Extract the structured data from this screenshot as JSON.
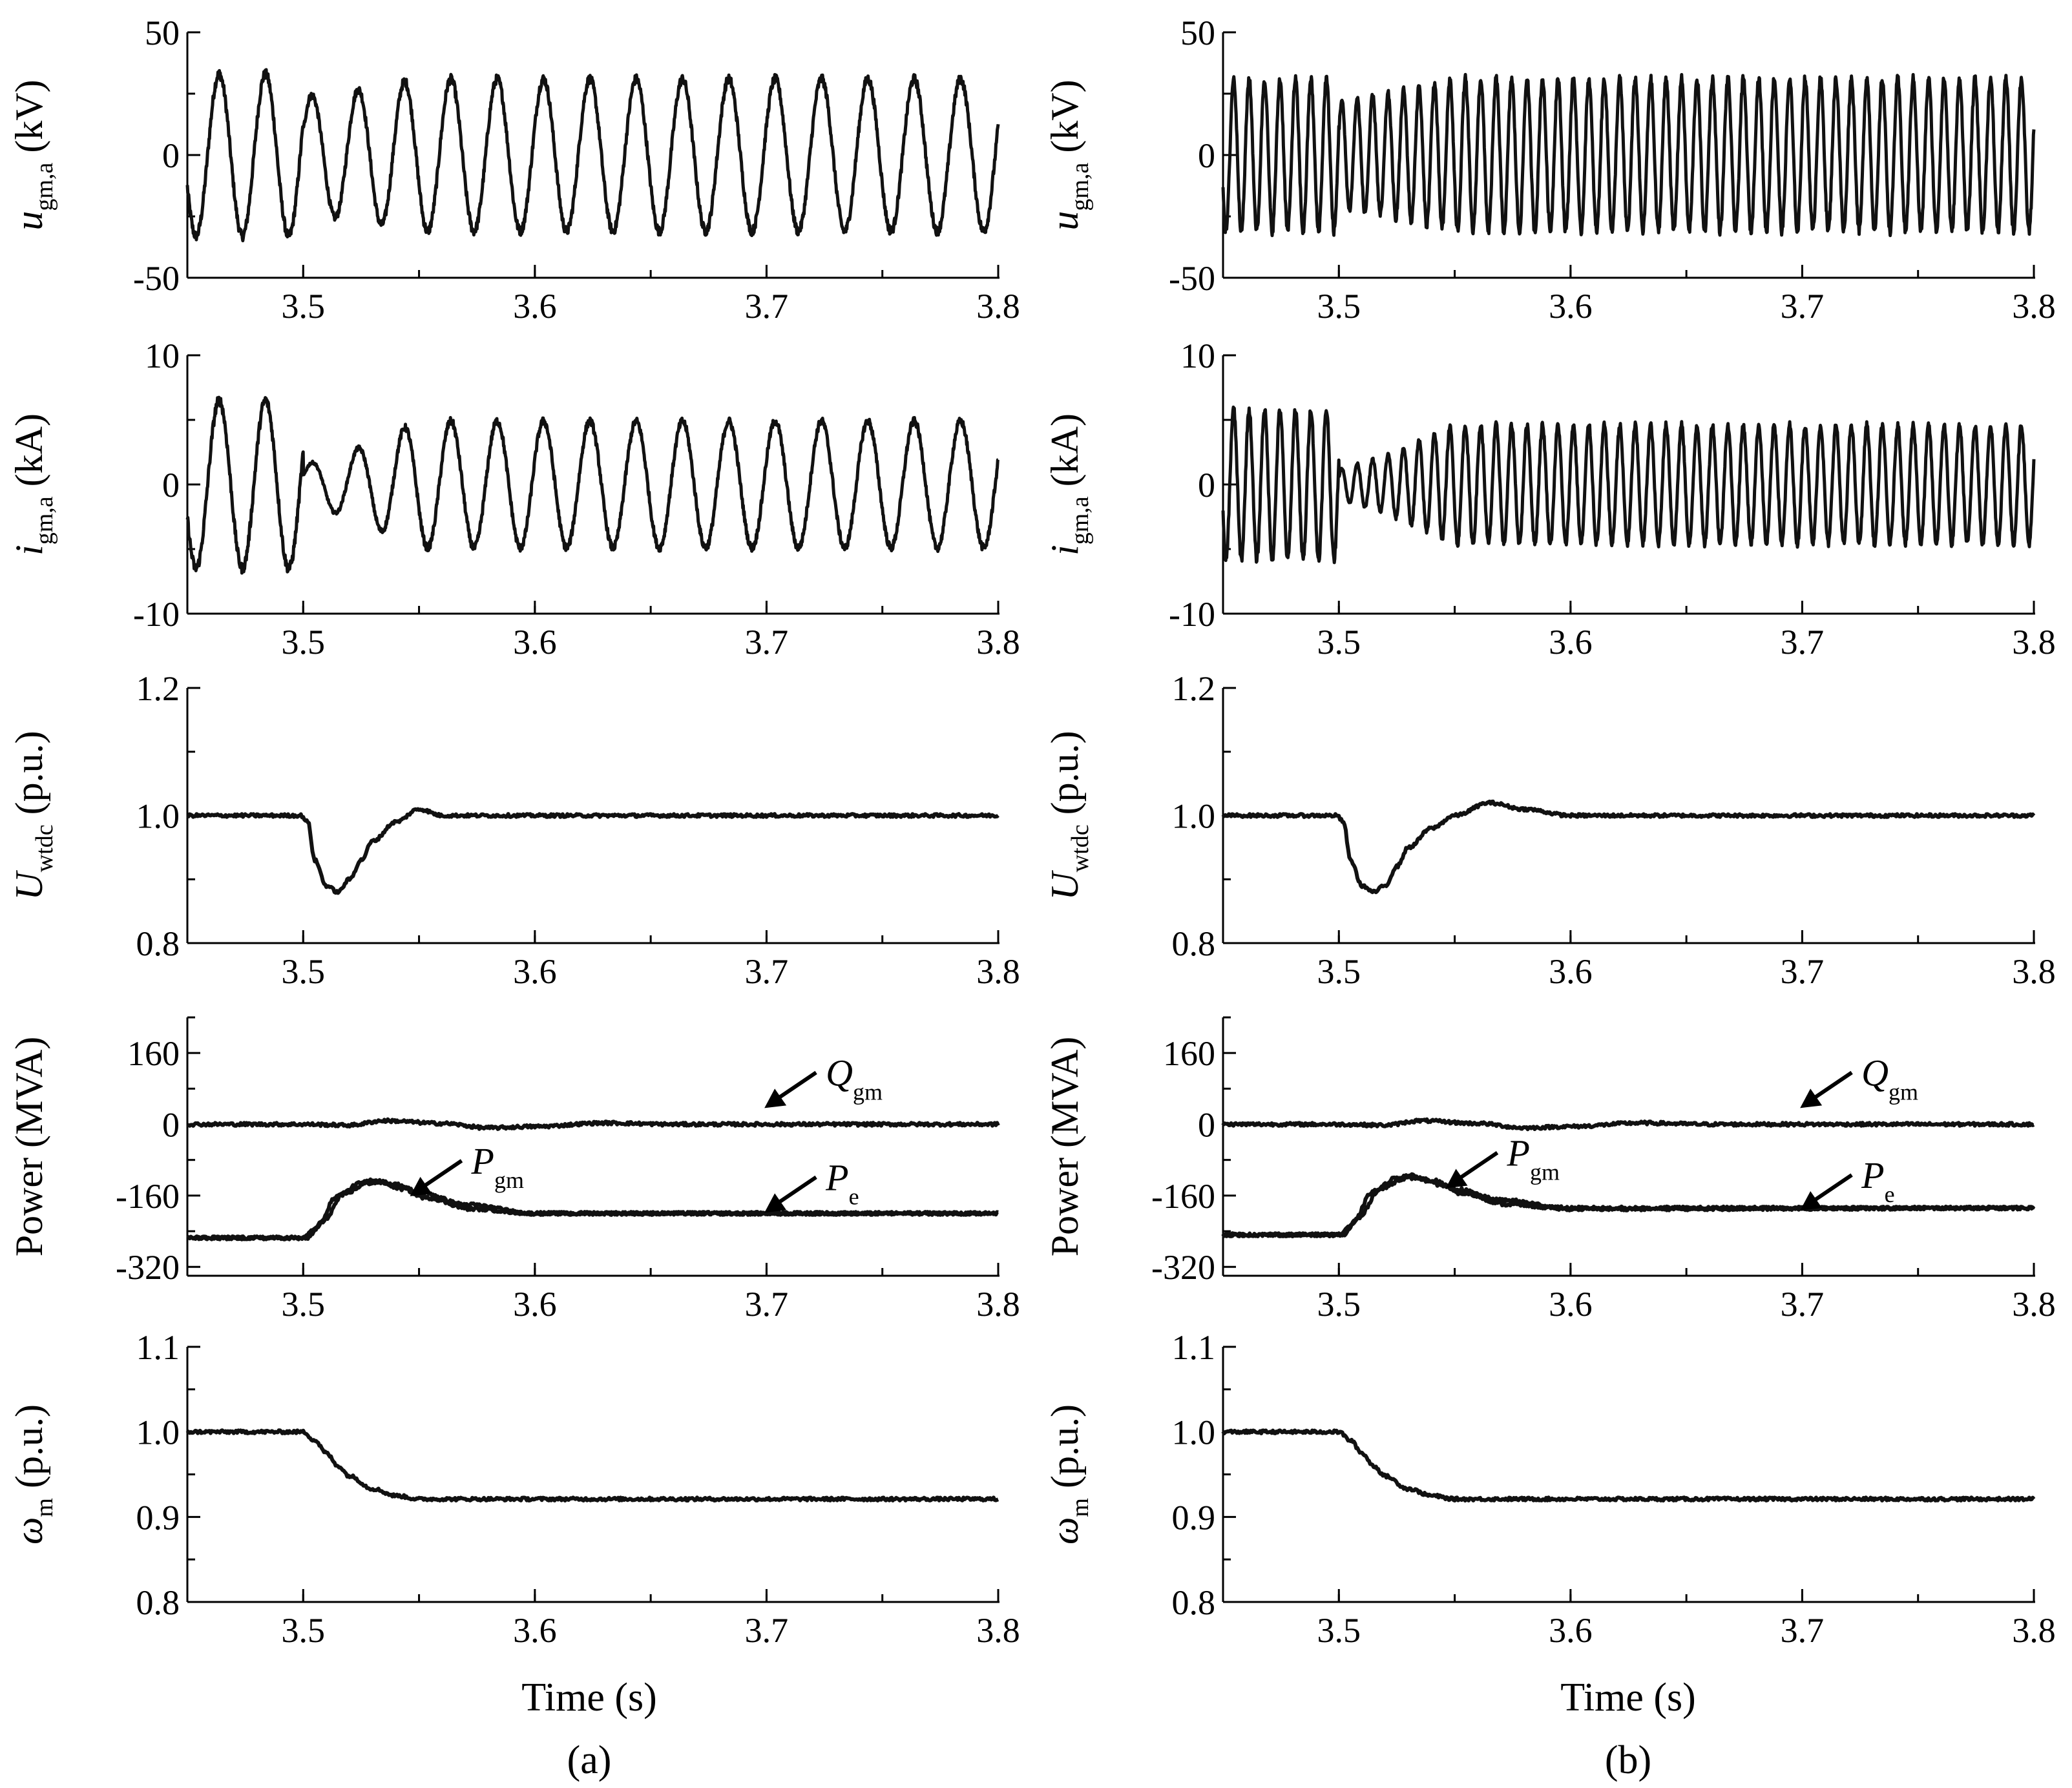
{
  "figure": {
    "x_axis_title": "Time (s)",
    "panel_labels": [
      "(a)",
      "(b)"
    ]
  },
  "chart_data": [
    {
      "type": "line",
      "column": "(a)",
      "row": 1,
      "ylabel": {
        "base": "u",
        "sub": "gm,a",
        "unit": " (kV)"
      },
      "xlim": [
        3.45,
        3.8
      ],
      "ylim": [
        -50,
        50
      ],
      "xticks": [
        "3.5",
        "3.6",
        "3.7",
        "3.8"
      ],
      "yticks": [
        "50",
        "0",
        "-50"
      ],
      "series": [
        {
          "name": "ugm,a",
          "kind": "sine",
          "frequency_hz": 50,
          "amplitude_before": 33,
          "amplitude_after": 31,
          "event_time": 3.5,
          "sag_amplitude": 24
        }
      ]
    },
    {
      "type": "line",
      "column": "(a)",
      "row": 2,
      "ylabel": {
        "base": "i",
        "sub": "gm,a",
        "unit": " (kA)"
      },
      "xlim": [
        3.45,
        3.8
      ],
      "ylim": [
        -10,
        10
      ],
      "xticks": [
        "3.5",
        "3.6",
        "3.7",
        "3.8"
      ],
      "yticks": [
        "10",
        "0",
        "-10"
      ],
      "series": [
        {
          "name": "igm,a",
          "kind": "sine",
          "frequency_hz": 50,
          "amplitude_before": 6.5,
          "amplitude_after": 4.9,
          "event_time": 3.5,
          "sag_amplitude": 1.5
        }
      ]
    },
    {
      "type": "line",
      "column": "(a)",
      "row": 3,
      "ylabel": {
        "base": "U",
        "sub": "wtdc",
        "unit": " (p.u.)"
      },
      "xlim": [
        3.45,
        3.8
      ],
      "ylim": [
        0.8,
        1.2
      ],
      "xticks": [
        "3.5",
        "3.6",
        "3.7",
        "3.8"
      ],
      "yticks": [
        "1.2",
        "1.0",
        "0.8"
      ],
      "series": [
        {
          "name": "Uwtdc",
          "kind": "points",
          "x": [
            3.45,
            3.499,
            3.502,
            3.505,
            3.51,
            3.515,
            3.52,
            3.525,
            3.53,
            3.54,
            3.55,
            3.56,
            3.8
          ],
          "y": [
            1.0,
            1.0,
            0.99,
            0.93,
            0.89,
            0.88,
            0.9,
            0.93,
            0.96,
            0.99,
            1.01,
            1.0,
            1.0
          ]
        }
      ]
    },
    {
      "type": "line",
      "column": "(a)",
      "row": 4,
      "ylabel": {
        "base": "Power",
        "sub": "",
        "unit": " (MVA)"
      },
      "xlim": [
        3.45,
        3.8
      ],
      "ylim": [
        -340,
        240
      ],
      "xticks": [
        "3.5",
        "3.6",
        "3.7",
        "3.8"
      ],
      "yticks": [
        "160",
        "0",
        "-160",
        "-320"
      ],
      "series": [
        {
          "name": "Qgm",
          "kind": "points",
          "x": [
            3.45,
            3.5,
            3.52,
            3.535,
            3.56,
            3.58,
            3.6,
            3.63,
            3.66,
            3.7,
            3.8
          ],
          "y": [
            0,
            0,
            -2,
            8,
            2,
            -8,
            -5,
            3,
            0,
            0,
            0
          ]
        },
        {
          "name": "Pgm",
          "kind": "points",
          "x": [
            3.45,
            3.5,
            3.505,
            3.515,
            3.525,
            3.53,
            3.54,
            3.55,
            3.57,
            3.6,
            3.8
          ],
          "y": [
            -255,
            -255,
            -235,
            -160,
            -132,
            -125,
            -135,
            -152,
            -180,
            -200,
            -200
          ]
        },
        {
          "name": "Pe",
          "kind": "points",
          "x": [
            3.45,
            3.502,
            3.508,
            3.518,
            3.528,
            3.533,
            3.543,
            3.553,
            3.573,
            3.6,
            3.8
          ],
          "y": [
            -255,
            -255,
            -220,
            -155,
            -132,
            -130,
            -145,
            -165,
            -190,
            -200,
            -200
          ]
        }
      ],
      "annotations": [
        {
          "base": "Q",
          "sub": "gm",
          "x_data": 3.72,
          "y_data": 80
        },
        {
          "base": "P",
          "sub": "gm",
          "x_data": 3.567,
          "y_data": -118
        },
        {
          "base": "P",
          "sub": "e",
          "x_data": 3.72,
          "y_data": -155
        }
      ]
    },
    {
      "type": "line",
      "column": "(a)",
      "row": 5,
      "ylabel": {
        "base": "ω",
        "sub": "m",
        "unit": " (p.u.)"
      },
      "xlim": [
        3.45,
        3.8
      ],
      "ylim": [
        0.8,
        1.1
      ],
      "xticks": [
        "3.5",
        "3.6",
        "3.7",
        "3.8"
      ],
      "yticks": [
        "1.1",
        "1.0",
        "0.9",
        "0.8"
      ],
      "series": [
        {
          "name": "ωm",
          "kind": "points",
          "x": [
            3.45,
            3.5,
            3.505,
            3.51,
            3.515,
            3.52,
            3.53,
            3.54,
            3.55,
            3.8
          ],
          "y": [
            1.0,
            1.0,
            0.99,
            0.975,
            0.96,
            0.948,
            0.933,
            0.925,
            0.921,
            0.921
          ]
        }
      ]
    },
    {
      "type": "line",
      "column": "(b)",
      "row": 1,
      "ylabel": {
        "base": "u",
        "sub": "gm,a",
        "unit": " (kV)"
      },
      "xlim": [
        3.45,
        3.8
      ],
      "ylim": [
        -50,
        50
      ],
      "xticks": [
        "3.5",
        "3.6",
        "3.7",
        "3.8"
      ],
      "yticks": [
        "50",
        "0",
        "-50"
      ],
      "series": [
        {
          "name": "ugm,a",
          "kind": "sine",
          "frequency_hz": 150,
          "amplitude_before": 31,
          "amplitude_after": 31,
          "event_time": 3.5,
          "sag_amplitude": 22
        }
      ]
    },
    {
      "type": "line",
      "column": "(b)",
      "row": 2,
      "ylabel": {
        "base": "i",
        "sub": "gm,a",
        "unit": " (kA)"
      },
      "xlim": [
        3.45,
        3.8
      ],
      "ylim": [
        -10,
        10
      ],
      "xticks": [
        "3.5",
        "3.6",
        "3.7",
        "3.8"
      ],
      "yticks": [
        "10",
        "0",
        "-10"
      ],
      "series": [
        {
          "name": "igm,a",
          "kind": "sine",
          "frequency_hz": 150,
          "amplitude_before": 5.8,
          "amplitude_after": 4.6,
          "event_time": 3.5,
          "sag_amplitude": 1.2
        }
      ]
    },
    {
      "type": "line",
      "column": "(b)",
      "row": 3,
      "ylabel": {
        "base": "U",
        "sub": "wtdc",
        "unit": " (p.u.)"
      },
      "xlim": [
        3.45,
        3.8
      ],
      "ylim": [
        0.8,
        1.2
      ],
      "xticks": [
        "3.5",
        "3.6",
        "3.7",
        "3.8"
      ],
      "yticks": [
        "1.2",
        "1.0",
        "0.8"
      ],
      "series": [
        {
          "name": "Uwtdc",
          "kind": "points",
          "x": [
            3.45,
            3.499,
            3.502,
            3.505,
            3.51,
            3.515,
            3.52,
            3.525,
            3.53,
            3.54,
            3.55,
            3.565,
            3.58,
            3.6,
            3.8
          ],
          "y": [
            1.0,
            1.0,
            0.99,
            0.93,
            0.89,
            0.88,
            0.89,
            0.92,
            0.95,
            0.98,
            1.0,
            1.02,
            1.01,
            1.0,
            1.0
          ]
        }
      ]
    },
    {
      "type": "line",
      "column": "(b)",
      "row": 4,
      "ylabel": {
        "base": "Power",
        "sub": "",
        "unit": " (MVA)"
      },
      "xlim": [
        3.45,
        3.8
      ],
      "ylim": [
        -340,
        240
      ],
      "xticks": [
        "3.5",
        "3.6",
        "3.7",
        "3.8"
      ],
      "yticks": [
        "160",
        "0",
        "-160",
        "-320"
      ],
      "series": [
        {
          "name": "Qgm",
          "kind": "points",
          "x": [
            3.45,
            3.5,
            3.52,
            3.535,
            3.56,
            3.58,
            3.6,
            3.63,
            3.66,
            3.7,
            3.8
          ],
          "y": [
            0,
            0,
            -2,
            8,
            2,
            -8,
            -5,
            3,
            0,
            0,
            0
          ]
        },
        {
          "name": "Pgm",
          "kind": "points",
          "x": [
            3.45,
            3.5,
            3.505,
            3.515,
            3.525,
            3.53,
            3.54,
            3.55,
            3.57,
            3.6,
            3.8
          ],
          "y": [
            -248,
            -248,
            -228,
            -150,
            -120,
            -115,
            -125,
            -145,
            -170,
            -188,
            -188
          ]
        },
        {
          "name": "Pe",
          "kind": "points",
          "x": [
            3.45,
            3.502,
            3.508,
            3.518,
            3.528,
            3.533,
            3.543,
            3.553,
            3.573,
            3.6,
            3.8
          ],
          "y": [
            -248,
            -248,
            -212,
            -145,
            -122,
            -120,
            -135,
            -155,
            -180,
            -190,
            -188
          ]
        }
      ],
      "annotations": [
        {
          "base": "Q",
          "sub": "gm",
          "x_data": 3.72,
          "y_data": 80
        },
        {
          "base": "P",
          "sub": "gm",
          "x_data": 3.567,
          "y_data": -100
        },
        {
          "base": "P",
          "sub": "e",
          "x_data": 3.72,
          "y_data": -150
        }
      ]
    },
    {
      "type": "line",
      "column": "(b)",
      "row": 5,
      "ylabel": {
        "base": "ω",
        "sub": "m",
        "unit": " (p.u.)"
      },
      "xlim": [
        3.45,
        3.8
      ],
      "ylim": [
        0.8,
        1.1
      ],
      "xticks": [
        "3.5",
        "3.6",
        "3.7",
        "3.8"
      ],
      "yticks": [
        "1.1",
        "1.0",
        "0.9",
        "0.8"
      ],
      "series": [
        {
          "name": "ωm",
          "kind": "points",
          "x": [
            3.45,
            3.5,
            3.505,
            3.51,
            3.515,
            3.52,
            3.53,
            3.54,
            3.55,
            3.8
          ],
          "y": [
            1.0,
            1.0,
            0.99,
            0.975,
            0.96,
            0.948,
            0.933,
            0.925,
            0.921,
            0.921
          ]
        }
      ]
    }
  ]
}
